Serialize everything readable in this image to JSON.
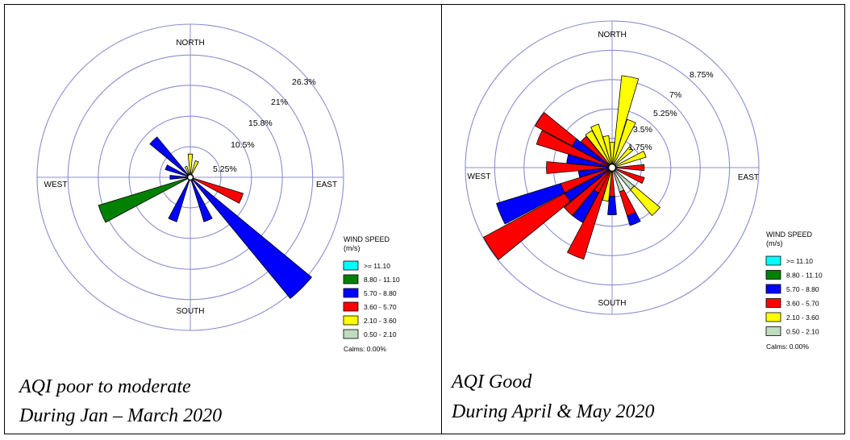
{
  "chart_data": [
    {
      "type": "windrose",
      "directions": [
        "NORTH",
        "EAST",
        "SOUTH",
        "WEST"
      ],
      "ring_labels": [
        "5.25%",
        "10.5%",
        "15.8%",
        "21%",
        "26.3%"
      ],
      "ring_values": [
        5.25,
        10.5,
        15.8,
        21,
        26.3
      ],
      "max_value": 26.3,
      "legend": {
        "title": "WIND SPEED",
        "units": "(m/s)",
        "items": [
          {
            "label": ">= 11.10",
            "color": "#00ffff"
          },
          {
            "label": "8.80 - 11.10",
            "color": "#008000"
          },
          {
            "label": "5.70 - 8.80",
            "color": "#0000ff"
          },
          {
            "label": "3.60 - 5.70",
            "color": "#ff0000"
          },
          {
            "label": "2.10 - 3.60",
            "color": "#ffff00"
          },
          {
            "label": "0.50 - 2.10",
            "color": "#c0dcc0"
          }
        ],
        "calms": "Calms: 0.00%"
      },
      "petals": [
        {
          "direction_deg": 0,
          "segments": [
            {
              "bin": "2.10 - 3.60",
              "value": 3.5
            }
          ]
        },
        {
          "direction_deg": 22.5,
          "segments": [
            {
              "bin": "2.10 - 3.60",
              "value": 2.5
            }
          ]
        },
        {
          "direction_deg": 112.5,
          "segments": [
            {
              "bin": "3.60 - 5.70",
              "value": 9.0
            }
          ]
        },
        {
          "direction_deg": 135,
          "segments": [
            {
              "bin": "5.70 - 8.80",
              "value": 26.5
            }
          ]
        },
        {
          "direction_deg": 157.5,
          "segments": [
            {
              "bin": "5.70 - 8.80",
              "value": 7.5
            }
          ]
        },
        {
          "direction_deg": 202.5,
          "segments": [
            {
              "bin": "5.70 - 8.80",
              "value": 7.5
            }
          ]
        },
        {
          "direction_deg": 247.5,
          "segments": [
            {
              "bin": "8.80 - 11.10",
              "value": 16.0
            }
          ]
        },
        {
          "direction_deg": 270,
          "segments": [
            {
              "bin": "5.70 - 8.80",
              "value": 3.0
            }
          ]
        },
        {
          "direction_deg": 292.5,
          "segments": [
            {
              "bin": "5.70 - 8.80",
              "value": 4.0
            }
          ]
        },
        {
          "direction_deg": 315,
          "segments": [
            {
              "bin": "5.70 - 8.80",
              "value": 8.5
            }
          ]
        },
        {
          "direction_deg": 337.5,
          "segments": [
            {
              "bin": "2.10 - 3.60",
              "value": 1.5
            }
          ]
        }
      ]
    },
    {
      "type": "windrose",
      "directions": [
        "NORTH",
        "EAST",
        "SOUTH",
        "WEST"
      ],
      "ring_labels": [
        "1.75%",
        "3.5%",
        "5.25%",
        "7%",
        "8.75%"
      ],
      "ring_values": [
        1.75,
        3.5,
        5.25,
        7,
        8.75
      ],
      "max_value": 8.75,
      "legend": {
        "title": "WIND SPEED",
        "units": "(m/s)",
        "items": [
          {
            "label": ">= 11.10",
            "color": "#00ffff"
          },
          {
            "label": "8.80 - 11.10",
            "color": "#008000"
          },
          {
            "label": "5.70 - 8.80",
            "color": "#0000ff"
          },
          {
            "label": "3.60 - 5.70",
            "color": "#ff0000"
          },
          {
            "label": "2.10 - 3.60",
            "color": "#ffff00"
          },
          {
            "label": "0.50 - 2.10",
            "color": "#c0dcc0"
          }
        ],
        "calms": "Calms: 0.00%"
      },
      "petals": [
        {
          "direction_deg": 0,
          "segments": [
            {
              "bin": "2.10 - 3.60",
              "value": 1.3
            }
          ]
        },
        {
          "direction_deg": 11.25,
          "segments": [
            {
              "bin": "2.10 - 3.60",
              "value": 5.3
            }
          ]
        },
        {
          "direction_deg": 22.5,
          "segments": [
            {
              "bin": "2.10 - 3.60",
              "value": 2.8
            }
          ]
        },
        {
          "direction_deg": 45,
          "segments": [
            {
              "bin": "2.10 - 3.60",
              "value": 1.4
            }
          ]
        },
        {
          "direction_deg": 67.5,
          "segments": [
            {
              "bin": "2.10 - 3.60",
              "value": 1.9
            }
          ]
        },
        {
          "direction_deg": 90,
          "segments": [
            {
              "bin": "3.60 - 5.70",
              "value": 1.7
            }
          ]
        },
        {
          "direction_deg": 112.5,
          "segments": [
            {
              "bin": "3.60 - 5.70",
              "value": 1.8
            }
          ]
        },
        {
          "direction_deg": 135,
          "segments": [
            {
              "bin": "0.50 - 2.10",
              "value": 1.5
            },
            {
              "bin": "2.10 - 3.60",
              "value": 2.0
            }
          ]
        },
        {
          "direction_deg": 157.5,
          "segments": [
            {
              "bin": "0.50 - 2.10",
              "value": 1.3
            },
            {
              "bin": "3.60 - 5.70",
              "value": 1.5
            },
            {
              "bin": "5.70 - 8.80",
              "value": 0.6
            }
          ]
        },
        {
          "direction_deg": 180,
          "segments": [
            {
              "bin": "3.60 - 5.70",
              "value": 1.5
            },
            {
              "bin": "5.70 - 8.80",
              "value": 1.1
            }
          ]
        },
        {
          "direction_deg": 191.25,
          "segments": [
            {
              "bin": "2.10 - 3.60",
              "value": 1.8
            }
          ]
        },
        {
          "direction_deg": 202.5,
          "segments": [
            {
              "bin": "3.60 - 5.70",
              "value": 5.5
            }
          ]
        },
        {
          "direction_deg": 213.75,
          "segments": [
            {
              "bin": "3.60 - 5.70",
              "value": 1.5
            },
            {
              "bin": "5.70 - 8.80",
              "value": 2.0
            }
          ]
        },
        {
          "direction_deg": 225,
          "segments": [
            {
              "bin": "3.60 - 5.70",
              "value": 3.5
            }
          ]
        },
        {
          "direction_deg": 236.25,
          "segments": [
            {
              "bin": "5.70 - 8.80",
              "value": 3.0
            },
            {
              "bin": "3.60 - 5.70",
              "value": 5.5
            }
          ]
        },
        {
          "direction_deg": 247.5,
          "segments": [
            {
              "bin": "3.60 - 5.70",
              "value": 3.0
            },
            {
              "bin": "5.70 - 8.80",
              "value": 4.0
            }
          ]
        },
        {
          "direction_deg": 258.75,
          "segments": [
            {
              "bin": "5.70 - 8.80",
              "value": 1.8
            }
          ]
        },
        {
          "direction_deg": 270,
          "segments": [
            {
              "bin": "3.60 - 5.70",
              "value": 3.7
            }
          ]
        },
        {
          "direction_deg": 281.25,
          "segments": [
            {
              "bin": "5.70 - 8.80",
              "value": 2.5
            }
          ]
        },
        {
          "direction_deg": 292.5,
          "segments": [
            {
              "bin": "3.60 - 5.70",
              "value": 4.5
            }
          ]
        },
        {
          "direction_deg": 303.75,
          "segments": [
            {
              "bin": "5.70 - 8.80",
              "value": 2.5
            },
            {
              "bin": "3.60 - 5.70",
              "value": 2.5
            }
          ]
        },
        {
          "direction_deg": 315,
          "segments": [
            {
              "bin": "3.60 - 5.70",
              "value": 2.2
            }
          ]
        },
        {
          "direction_deg": 326.25,
          "segments": [
            {
              "bin": "2.10 - 3.60",
              "value": 2.3
            }
          ]
        },
        {
          "direction_deg": 337.5,
          "segments": [
            {
              "bin": "2.10 - 3.60",
              "value": 2.5
            }
          ]
        },
        {
          "direction_deg": 348.75,
          "segments": [
            {
              "bin": "2.10 - 3.60",
              "value": 1.7
            }
          ]
        }
      ]
    }
  ],
  "captions": [
    {
      "line1": "AQI poor to moderate",
      "line2": "During Jan – March 2020"
    },
    {
      "line1": "AQI Good",
      "line2": "During April & May 2020"
    }
  ],
  "colors": {
    "ring": "#8c8cd2",
    "petal_stroke": "#000000"
  }
}
